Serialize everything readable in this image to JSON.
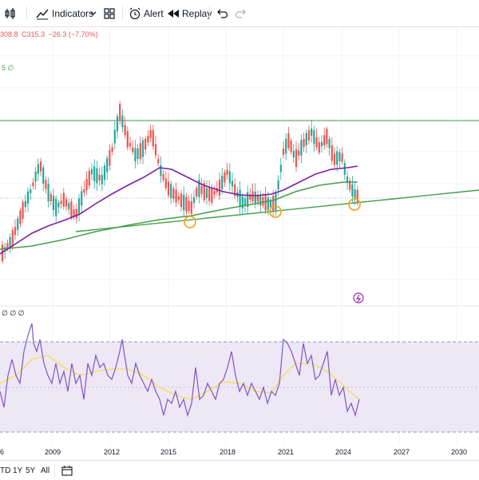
{
  "toolbar": {
    "indicators_label": "Indicators",
    "alert_label": "Alert",
    "replay_label": "Replay"
  },
  "legend": {
    "low_text": "308.8",
    "close_text": "C315.3",
    "change_text": "−26.3 (−7.70%)",
    "ma_text": "5 ∅",
    "rsi_text": "∅ ∅ ∅"
  },
  "chart_data": {
    "type": "candlestick",
    "timeframe_axis": [
      "2009",
      "2012",
      "2015",
      "2018",
      "2021",
      "2024",
      "2027",
      "2030"
    ],
    "last_close": 315.3,
    "last_change": -26.3,
    "last_change_pct": -7.7,
    "indicators": [
      "moving average (purple)",
      "moving average (green)",
      "RSI"
    ],
    "annotations": [
      "horizontal resistance line (green)",
      "ascending trendline (green)",
      "3 circled touch points on trendline"
    ],
    "colors": {
      "up": "#26a69a",
      "down": "#ef5350",
      "ma_long": "#43a047",
      "ma_short": "#7b1fa2",
      "rsi": "#7e57c2",
      "rsi_ma": "#fdd835",
      "rsi_band": "#ede7f6",
      "highlight": "#f5a623"
    }
  },
  "bottom_bar": {
    "ranges": [
      "TD",
      "1Y",
      "5Y",
      "All"
    ]
  }
}
